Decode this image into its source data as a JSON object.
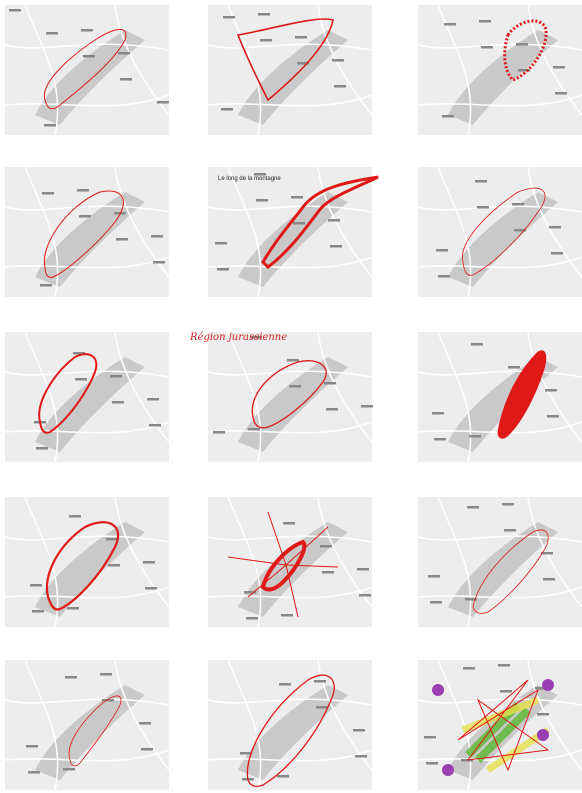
{
  "labels": [
    "Le long de la montagne",
    "Région jurassienne"
  ]
}
